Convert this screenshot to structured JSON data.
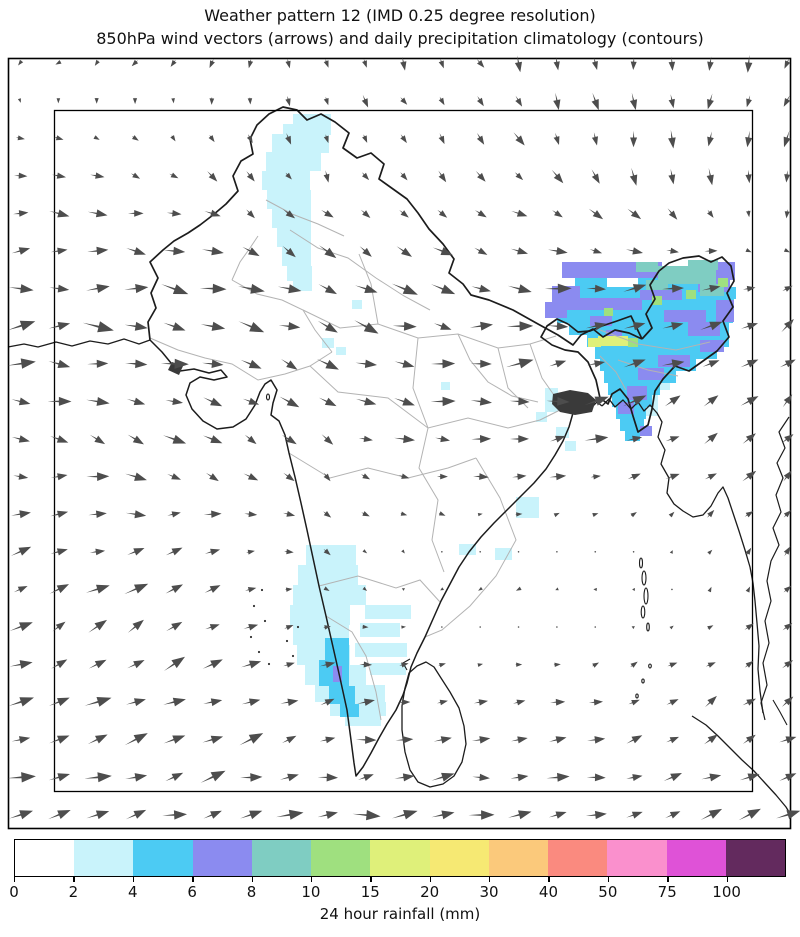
{
  "title": {
    "line1": "Weather pattern 12 (IMD 0.25 degree resolution)",
    "line2": "850hPa wind vectors (arrows) and daily precipitation climatology (contours)"
  },
  "colorbar": {
    "label": "24 hour rainfall (mm)",
    "ticks": [
      "0",
      "2",
      "4",
      "6",
      "8",
      "10",
      "15",
      "20",
      "30",
      "40",
      "50",
      "75",
      "100"
    ],
    "colors": [
      "#ffffff",
      "#c9f3fb",
      "#4ccbf3",
      "#8b8bf0",
      "#7fcdc2",
      "#9fe07f",
      "#dff07a",
      "#f6e973",
      "#fbc97b",
      "#fa8a7f",
      "#fa90cd",
      "#df52d7",
      "#632a5e"
    ]
  },
  "chart_data": {
    "type": "heatmap",
    "title": "Weather pattern 12 (IMD 0.25 degree resolution)",
    "subtitle": "850hPa wind vectors (arrows) and daily precipitation climatology (contours)",
    "legend_label": "24 hour rainfall (mm)",
    "precip_levels_mm": [
      0,
      2,
      4,
      6,
      8,
      10,
      15,
      20,
      30,
      40,
      50,
      75,
      100
    ],
    "region": "India (IMD domain box drawn inside outer frame)",
    "wind": {
      "arrow_color": "#4d4d4d",
      "cols": 21,
      "rows": 21,
      "control_x": [
        0,
        0.2,
        0.4,
        0.6,
        0.8,
        1
      ],
      "control_y": [
        0,
        0.15,
        0.33,
        0.5,
        0.67,
        0.83,
        1
      ],
      "vectors_dxdy_screen": [
        [
          [
            -3,
            2
          ],
          [
            -3,
            3
          ],
          [
            1,
            4
          ],
          [
            3,
            5
          ],
          [
            1,
            7
          ],
          [
            -2,
            6
          ]
        ],
        [
          [
            6,
            1
          ],
          [
            5,
            2
          ],
          [
            2,
            5
          ],
          [
            4,
            4
          ],
          [
            2,
            8
          ],
          [
            -2,
            6
          ]
        ],
        [
          [
            11,
            -2
          ],
          [
            12,
            2
          ],
          [
            11,
            4
          ],
          [
            11,
            1
          ],
          [
            11,
            -4
          ],
          [
            5,
            -4
          ]
        ],
        [
          [
            9,
            1
          ],
          [
            8,
            4
          ],
          [
            5,
            4
          ],
          [
            9,
            -1
          ],
          [
            8,
            -3
          ],
          [
            5,
            -5
          ]
        ],
        [
          [
            7,
            -3
          ],
          [
            8,
            -5
          ],
          [
            2,
            2
          ],
          [
            -3,
            1
          ],
          [
            -2,
            0
          ],
          [
            3,
            -3
          ]
        ],
        [
          [
            9,
            -4
          ],
          [
            9,
            -5
          ],
          [
            7,
            -2
          ],
          [
            5,
            -1
          ],
          [
            5,
            -2
          ],
          [
            5,
            -4
          ]
        ],
        [
          [
            12,
            -2
          ],
          [
            12,
            -2
          ],
          [
            11,
            -1
          ],
          [
            11,
            -1
          ],
          [
            10,
            -2
          ],
          [
            9,
            -3
          ]
        ]
      ]
    },
    "precipitation": {
      "patches": [
        {
          "level": 1,
          "rects": [
            [
              293,
              114,
              38,
              11
            ],
            [
              283,
              124,
              48,
              11
            ],
            [
              272,
              134,
              57,
              19
            ],
            [
              266,
              152,
              55,
              19
            ],
            [
              262,
              171,
              48,
              19
            ],
            [
              267,
              190,
              44,
              19
            ],
            [
              272,
              209,
              39,
              19
            ],
            [
              277,
              228,
              34,
              19
            ],
            [
              282,
              247,
              29,
              19
            ],
            [
              287,
              266,
              25,
              15
            ],
            [
              293,
              281,
              19,
              10
            ],
            [
              322,
              338,
              12,
              10
            ],
            [
              336,
              347,
              10,
              8
            ],
            [
              352,
              300,
              10,
              9
            ],
            [
              441,
              382,
              9,
              8
            ],
            [
              545,
              388,
              13,
              24
            ],
            [
              536,
              412,
              11,
              10
            ],
            [
              556,
              427,
              13,
              11
            ],
            [
              516,
              497,
              23,
              21
            ],
            [
              495,
              548,
              17,
              12
            ],
            [
              459,
              544,
              17,
              11
            ],
            [
              565,
              441,
              11,
              10
            ],
            [
              306,
              545,
              50,
              20
            ],
            [
              298,
              565,
              60,
              20
            ],
            [
              293,
              585,
              73,
              20
            ],
            [
              290,
              605,
              60,
              20
            ],
            [
              365,
              605,
              46,
              14
            ],
            [
              293,
              625,
              56,
              20
            ],
            [
              360,
              623,
              40,
              14
            ],
            [
              297,
              645,
              53,
              20
            ],
            [
              355,
              643,
              52,
              14
            ],
            [
              305,
              665,
              61,
              20
            ],
            [
              370,
              663,
              36,
              12
            ],
            [
              315,
              685,
              70,
              17
            ],
            [
              330,
              702,
              56,
              14
            ],
            [
              345,
              716,
              36,
              10
            ],
            [
              598,
              320,
              42,
              22
            ],
            [
              640,
              342,
              36,
              28
            ],
            [
              660,
              328,
              22,
              14
            ],
            [
              604,
              352,
              26,
              16
            ],
            [
              646,
              372,
              24,
              18
            ],
            [
              638,
              394,
              20,
              22
            ],
            [
              573,
              300,
              16,
              12
            ]
          ]
        },
        {
          "level": 2,
          "rects": [
            [
              325,
              638,
              24,
              22
            ],
            [
              319,
              660,
              30,
              26
            ],
            [
              329,
              686,
              26,
              18
            ],
            [
              340,
              704,
              19,
              13
            ],
            [
              648,
              266,
              42,
              12
            ],
            [
              575,
              277,
              32,
              11
            ],
            [
              638,
              277,
              72,
              12
            ],
            [
              560,
              287,
              176,
              12
            ],
            [
              552,
              298,
              182,
              13
            ],
            [
              557,
              311,
              176,
              12
            ],
            [
              569,
              323,
              160,
              12
            ],
            [
              587,
              335,
              142,
              12
            ],
            [
              595,
              347,
              122,
              12
            ],
            [
              600,
              359,
              96,
              12
            ],
            [
              604,
              371,
              72,
              12
            ],
            [
              608,
              383,
              52,
              12
            ],
            [
              612,
              395,
              40,
              12
            ],
            [
              616,
              407,
              30,
              12
            ],
            [
              620,
              419,
              24,
              12
            ],
            [
              625,
              431,
              15,
              10
            ]
          ]
        },
        {
          "level": 3,
          "rects": [
            [
              562,
              262,
              100,
              16
            ],
            [
              713,
              262,
              22,
              18
            ],
            [
              698,
              280,
              32,
              12
            ],
            [
              552,
              286,
              28,
              24
            ],
            [
              545,
              302,
              22,
              16
            ],
            [
              580,
              298,
              62,
              12
            ],
            [
              640,
              290,
              42,
              10
            ],
            [
              664,
              310,
              42,
              12
            ],
            [
              688,
              322,
              32,
              14
            ],
            [
              700,
              340,
              24,
              12
            ],
            [
              658,
              355,
              32,
              12
            ],
            [
              638,
              368,
              26,
              12
            ],
            [
              627,
              386,
              20,
              14
            ],
            [
              618,
              402,
              16,
              12
            ],
            [
              606,
              330,
              16,
              10
            ],
            [
              590,
              316,
              22,
              10
            ],
            [
              716,
              300,
              18,
              22
            ],
            [
              640,
              426,
              12,
              10
            ],
            [
              333,
              666,
              9,
              16
            ]
          ]
        },
        {
          "level": 4,
          "rects": [
            [
              658,
              266,
              58,
              18
            ],
            [
              688,
              260,
              30,
              10
            ],
            [
              646,
              280,
              22,
              10
            ],
            [
              700,
              284,
              24,
              12
            ],
            [
              636,
              262,
              22,
              10
            ]
          ]
        },
        {
          "level": 5,
          "rects": [
            [
              652,
              296,
              10,
              9
            ],
            [
              686,
              290,
              10,
              9
            ],
            [
              628,
              338,
              10,
              9
            ],
            [
              718,
              278,
              10,
              9
            ],
            [
              604,
              308,
              9,
              8
            ]
          ]
        },
        {
          "level": 6,
          "rects": [
            [
              598,
              336,
              30,
              10
            ],
            [
              588,
              338,
              13,
              9
            ]
          ]
        }
      ]
    }
  }
}
